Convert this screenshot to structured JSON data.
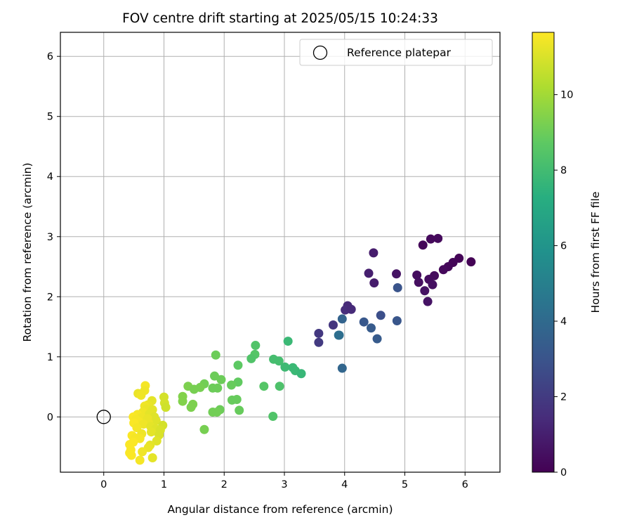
{
  "chart_data": {
    "type": "scatter",
    "title": "FOV centre drift starting at 2025/05/15 10:24:33",
    "xlabel": "Angular distance from reference (arcmin)",
    "ylabel": "Rotation from reference (arcmin)",
    "xlim": [
      -0.72,
      6.58
    ],
    "ylim": [
      -0.92,
      6.4
    ],
    "xticks": [
      0,
      1,
      2,
      3,
      4,
      5,
      6
    ],
    "yticks": [
      0,
      1,
      2,
      3,
      4,
      5,
      6
    ],
    "grid": true,
    "legend": {
      "location": "upper right",
      "entries": [
        {
          "label": "Reference platepar",
          "marker": "open-circle"
        }
      ]
    },
    "reference_point": {
      "x": 0,
      "y": 0
    },
    "colorbar": {
      "label": "Hours from first FF file",
      "colormap": "viridis",
      "range": [
        0,
        11.65
      ],
      "ticks": [
        0,
        2,
        4,
        6,
        8,
        10
      ]
    },
    "points": [
      {
        "x": 5.3,
        "y": 2.86,
        "h": 0.2
      },
      {
        "x": 5.43,
        "y": 2.96,
        "h": 0.25
      },
      {
        "x": 5.55,
        "y": 2.97,
        "h": 0.3
      },
      {
        "x": 4.48,
        "y": 2.73,
        "h": 0.9
      },
      {
        "x": 5.9,
        "y": 2.64,
        "h": 0.1
      },
      {
        "x": 6.1,
        "y": 2.58,
        "h": 0.05
      },
      {
        "x": 5.8,
        "y": 2.57,
        "h": 0.15
      },
      {
        "x": 5.72,
        "y": 2.5,
        "h": 0.2
      },
      {
        "x": 5.64,
        "y": 2.45,
        "h": 0.25
      },
      {
        "x": 4.4,
        "y": 2.39,
        "h": 1.0
      },
      {
        "x": 4.86,
        "y": 2.38,
        "h": 0.6
      },
      {
        "x": 5.2,
        "y": 2.36,
        "h": 0.4
      },
      {
        "x": 5.49,
        "y": 2.35,
        "h": 0.35
      },
      {
        "x": 5.4,
        "y": 2.29,
        "h": 0.4
      },
      {
        "x": 5.23,
        "y": 2.24,
        "h": 0.45
      },
      {
        "x": 4.49,
        "y": 2.23,
        "h": 0.9
      },
      {
        "x": 5.46,
        "y": 2.2,
        "h": 0.5
      },
      {
        "x": 4.88,
        "y": 2.15,
        "h": 3.0
      },
      {
        "x": 5.33,
        "y": 2.1,
        "h": 0.55
      },
      {
        "x": 5.38,
        "y": 1.92,
        "h": 0.6
      },
      {
        "x": 4.05,
        "y": 1.85,
        "h": 1.4
      },
      {
        "x": 4.01,
        "y": 1.78,
        "h": 1.5
      },
      {
        "x": 4.11,
        "y": 1.79,
        "h": 1.4
      },
      {
        "x": 4.6,
        "y": 1.69,
        "h": 2.8
      },
      {
        "x": 3.96,
        "y": 1.63,
        "h": 3.7
      },
      {
        "x": 4.87,
        "y": 1.6,
        "h": 3.1
      },
      {
        "x": 4.32,
        "y": 1.58,
        "h": 3.2
      },
      {
        "x": 3.81,
        "y": 1.53,
        "h": 1.8
      },
      {
        "x": 4.44,
        "y": 1.48,
        "h": 3.3
      },
      {
        "x": 3.57,
        "y": 1.39,
        "h": 1.9
      },
      {
        "x": 3.9,
        "y": 1.36,
        "h": 4.3
      },
      {
        "x": 3.91,
        "y": 1.36,
        "h": 4.2
      },
      {
        "x": 4.54,
        "y": 1.3,
        "h": 3.3
      },
      {
        "x": 3.57,
        "y": 1.24,
        "h": 2.0
      },
      {
        "x": 3.96,
        "y": 0.81,
        "h": 3.8
      },
      {
        "x": 3.06,
        "y": 1.26,
        "h": 7.8
      },
      {
        "x": 2.52,
        "y": 1.19,
        "h": 8.4
      },
      {
        "x": 1.86,
        "y": 1.03,
        "h": 9.0
      },
      {
        "x": 2.51,
        "y": 1.04,
        "h": 8.5
      },
      {
        "x": 2.45,
        "y": 0.97,
        "h": 8.4
      },
      {
        "x": 2.82,
        "y": 0.96,
        "h": 8.1
      },
      {
        "x": 2.91,
        "y": 0.93,
        "h": 8.1
      },
      {
        "x": 2.23,
        "y": 0.86,
        "h": 8.7
      },
      {
        "x": 3.01,
        "y": 0.83,
        "h": 7.9
      },
      {
        "x": 3.14,
        "y": 0.82,
        "h": 7.8
      },
      {
        "x": 3.18,
        "y": 0.77,
        "h": 7.8
      },
      {
        "x": 3.28,
        "y": 0.72,
        "h": 7.7
      },
      {
        "x": 1.84,
        "y": 0.68,
        "h": 9.0
      },
      {
        "x": 1.95,
        "y": 0.62,
        "h": 9.0
      },
      {
        "x": 2.23,
        "y": 0.58,
        "h": 8.8
      },
      {
        "x": 1.67,
        "y": 0.55,
        "h": 9.1
      },
      {
        "x": 2.12,
        "y": 0.53,
        "h": 8.9
      },
      {
        "x": 1.4,
        "y": 0.51,
        "h": 9.3
      },
      {
        "x": 2.66,
        "y": 0.51,
        "h": 8.5
      },
      {
        "x": 2.92,
        "y": 0.51,
        "h": 8.3
      },
      {
        "x": 1.6,
        "y": 0.49,
        "h": 9.2
      },
      {
        "x": 1.81,
        "y": 0.48,
        "h": 9.0
      },
      {
        "x": 1.89,
        "y": 0.48,
        "h": 9.0
      },
      {
        "x": 1.5,
        "y": 0.46,
        "h": 9.2
      },
      {
        "x": 1.31,
        "y": 0.34,
        "h": 9.4
      },
      {
        "x": 1.31,
        "y": 0.26,
        "h": 9.4
      },
      {
        "x": 2.13,
        "y": 0.28,
        "h": 8.9
      },
      {
        "x": 2.21,
        "y": 0.29,
        "h": 8.9
      },
      {
        "x": 1.48,
        "y": 0.21,
        "h": 9.3
      },
      {
        "x": 1.45,
        "y": 0.16,
        "h": 9.3
      },
      {
        "x": 1.93,
        "y": 0.12,
        "h": 9.0
      },
      {
        "x": 2.25,
        "y": 0.11,
        "h": 8.9
      },
      {
        "x": 1.81,
        "y": 0.08,
        "h": 9.1
      },
      {
        "x": 1.88,
        "y": 0.08,
        "h": 9.1
      },
      {
        "x": 2.81,
        "y": 0.01,
        "h": 8.4
      },
      {
        "x": 1.67,
        "y": -0.21,
        "h": 9.2
      },
      {
        "x": 0.69,
        "y": 0.52,
        "h": 11.5
      },
      {
        "x": 0.68,
        "y": 0.44,
        "h": 11.4
      },
      {
        "x": 0.57,
        "y": 0.39,
        "h": 11.3
      },
      {
        "x": 0.62,
        "y": 0.36,
        "h": 11.4
      },
      {
        "x": 1.0,
        "y": 0.33,
        "h": 10.9
      },
      {
        "x": 0.8,
        "y": 0.27,
        "h": 11.2
      },
      {
        "x": 1.01,
        "y": 0.23,
        "h": 10.9
      },
      {
        "x": 0.73,
        "y": 0.2,
        "h": 11.3
      },
      {
        "x": 0.68,
        "y": 0.18,
        "h": 11.4
      },
      {
        "x": 1.03,
        "y": 0.16,
        "h": 10.8
      },
      {
        "x": 0.71,
        "y": 0.13,
        "h": 11.3
      },
      {
        "x": 0.81,
        "y": 0.12,
        "h": 11.2
      },
      {
        "x": 0.65,
        "y": 0.08,
        "h": 11.4
      },
      {
        "x": 0.76,
        "y": 0.05,
        "h": 11.2
      },
      {
        "x": 0.56,
        "y": 0.04,
        "h": 11.5
      },
      {
        "x": 0.49,
        "y": 0.0,
        "h": 11.6
      },
      {
        "x": 0.84,
        "y": 0.0,
        "h": 11.1
      },
      {
        "x": 0.63,
        "y": -0.01,
        "h": 11.4
      },
      {
        "x": 0.73,
        "y": -0.03,
        "h": 11.3
      },
      {
        "x": 0.53,
        "y": -0.04,
        "h": 11.5
      },
      {
        "x": 0.87,
        "y": -0.06,
        "h": 11.1
      },
      {
        "x": 0.58,
        "y": -0.08,
        "h": 11.5
      },
      {
        "x": 0.74,
        "y": -0.09,
        "h": 11.3
      },
      {
        "x": 0.5,
        "y": -0.1,
        "h": 11.6
      },
      {
        "x": 0.66,
        "y": -0.12,
        "h": 11.4
      },
      {
        "x": 0.98,
        "y": -0.14,
        "h": 10.9
      },
      {
        "x": 0.78,
        "y": -0.16,
        "h": 11.2
      },
      {
        "x": 0.55,
        "y": -0.18,
        "h": 11.5
      },
      {
        "x": 0.86,
        "y": -0.2,
        "h": 11.1
      },
      {
        "x": 0.94,
        "y": -0.22,
        "h": 11.0
      },
      {
        "x": 0.79,
        "y": -0.25,
        "h": 11.2
      },
      {
        "x": 0.63,
        "y": -0.28,
        "h": 11.4
      },
      {
        "x": 0.92,
        "y": -0.3,
        "h": 11.0
      },
      {
        "x": 0.47,
        "y": -0.31,
        "h": 11.6
      },
      {
        "x": 0.52,
        "y": -0.35,
        "h": 11.5
      },
      {
        "x": 0.6,
        "y": -0.36,
        "h": 11.5
      },
      {
        "x": 0.88,
        "y": -0.4,
        "h": 11.1
      },
      {
        "x": 0.49,
        "y": -0.42,
        "h": 11.6
      },
      {
        "x": 0.43,
        "y": -0.46,
        "h": 11.6
      },
      {
        "x": 0.77,
        "y": -0.47,
        "h": 11.2
      },
      {
        "x": 0.74,
        "y": -0.51,
        "h": 11.3
      },
      {
        "x": 0.45,
        "y": -0.55,
        "h": 11.6
      },
      {
        "x": 0.64,
        "y": -0.58,
        "h": 11.4
      },
      {
        "x": 0.43,
        "y": -0.6,
        "h": 11.6
      },
      {
        "x": 0.46,
        "y": -0.64,
        "h": 11.6
      },
      {
        "x": 0.81,
        "y": -0.68,
        "h": 11.2
      },
      {
        "x": 0.6,
        "y": -0.72,
        "h": 11.5
      }
    ]
  }
}
